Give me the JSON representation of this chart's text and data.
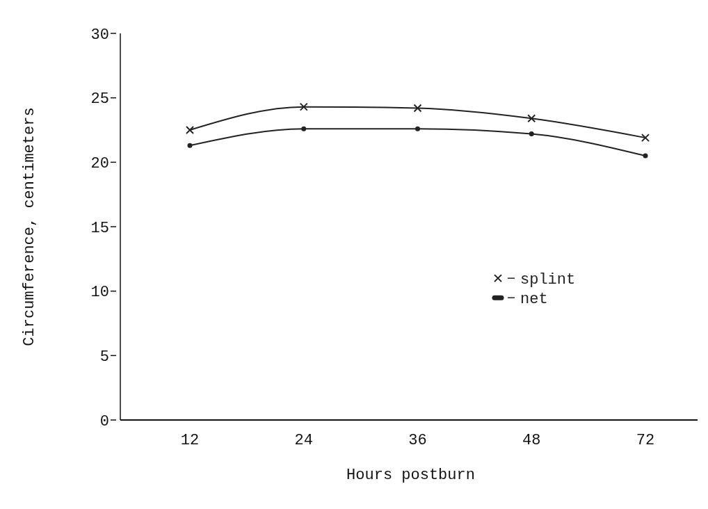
{
  "chart_data": {
    "type": "line",
    "xlabel": "Hours postburn",
    "ylabel": "Circumference, centimeters",
    "categories": [
      "12",
      "24",
      "36",
      "48",
      "72"
    ],
    "series": [
      {
        "name": "splint",
        "color": "#222222",
        "marker": "cross",
        "values": [
          22.5,
          24.3,
          24.2,
          23.4,
          21.9
        ]
      },
      {
        "name": "net",
        "color": "#222222",
        "marker": "circle",
        "values": [
          21.3,
          22.6,
          22.6,
          22.2,
          20.5
        ]
      }
    ],
    "ylim": [
      0,
      30
    ],
    "yticks": [
      0,
      5,
      10,
      15,
      20,
      25,
      30
    ],
    "grid": false,
    "legend": "right",
    "line_style": "solid"
  }
}
